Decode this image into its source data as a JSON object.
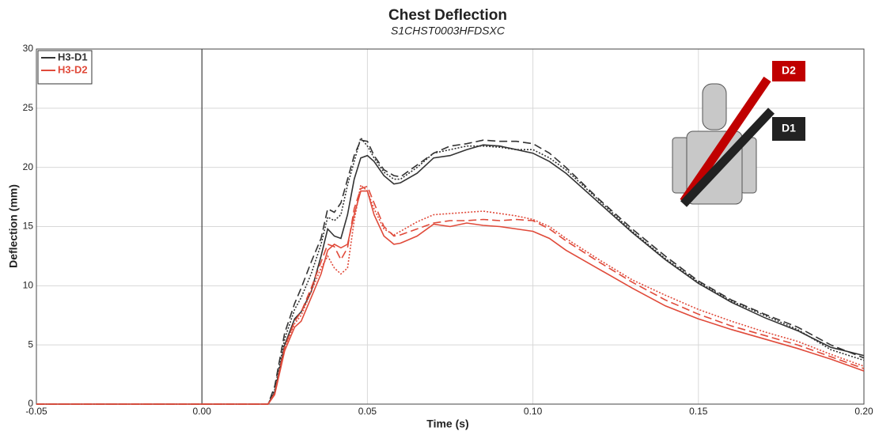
{
  "chart_data": {
    "type": "line",
    "title": "Chest Deflection",
    "subtitle": "S1CHST0003HFDSXC",
    "x_label": "Time (s)",
    "y_label": "Deflection (mm)",
    "xlim": [
      -0.05,
      0.2
    ],
    "ylim": [
      0,
      30
    ],
    "xticks": [
      {
        "value": -0.05,
        "label": "-0.05"
      },
      {
        "value": 0,
        "label": "0.00"
      },
      {
        "value": 0.05,
        "label": "0.05"
      },
      {
        "value": 0.1,
        "label": "0.10"
      },
      {
        "value": 0.15,
        "label": "0.15"
      },
      {
        "value": 0.2,
        "label": "0.20"
      }
    ],
    "yticks": [
      0,
      5,
      10,
      15,
      20,
      25,
      30
    ],
    "grid": true,
    "legend": "top-left",
    "annotations": [
      "D2",
      "D1"
    ],
    "x": [
      -0.05,
      0.02,
      0.022,
      0.025,
      0.028,
      0.03,
      0.033,
      0.036,
      0.038,
      0.04,
      0.042,
      0.044,
      0.046,
      0.048,
      0.05,
      0.052,
      0.055,
      0.058,
      0.06,
      0.065,
      0.07,
      0.075,
      0.08,
      0.085,
      0.09,
      0.095,
      0.1,
      0.105,
      0.11,
      0.12,
      0.13,
      0.14,
      0.15,
      0.16,
      0.17,
      0.18,
      0.19,
      0.2
    ],
    "series": [
      {
        "name": "H3-D1",
        "color": "#333333",
        "dash": "solid",
        "values": [
          0,
          0,
          1,
          5,
          7.2,
          7.8,
          9.5,
          12.5,
          14.8,
          14.2,
          14,
          16,
          19,
          20.8,
          21,
          20.5,
          19.3,
          18.6,
          18.7,
          19.5,
          20.8,
          21,
          21.5,
          21.9,
          21.8,
          21.5,
          21.2,
          20.5,
          19.5,
          17,
          14.5,
          12.2,
          10.2,
          8.6,
          7.3,
          6.2,
          4.8,
          4.1
        ]
      },
      {
        "color": "#333333",
        "dash": "dashed",
        "values": [
          0,
          0,
          1.5,
          6,
          8.5,
          9.8,
          12,
          14,
          16.5,
          16.2,
          17,
          19,
          21,
          22.3,
          22.2,
          21,
          19.8,
          19.3,
          19.2,
          20.2,
          21.2,
          21.8,
          22,
          22.3,
          22.2,
          22.2,
          22,
          21.2,
          20,
          17.3,
          14.8,
          12.5,
          10.4,
          8.8,
          7.6,
          6.5,
          5,
          3.9
        ]
      },
      {
        "color": "#333333",
        "dash": "dotted",
        "values": [
          0,
          0,
          1.2,
          5.5,
          8,
          9,
          11,
          13.5,
          15.8,
          15.5,
          16,
          18.5,
          20.5,
          22.5,
          21.8,
          20.8,
          19.6,
          19,
          19,
          20,
          21.2,
          21.5,
          21.8,
          21.8,
          21.7,
          21.5,
          21.5,
          20.8,
          19.8,
          17.2,
          14.6,
          12.3,
          10.3,
          8.7,
          7.5,
          6.3,
          4.6,
          3.7
        ]
      },
      {
        "name": "H3-D2",
        "color": "#e04a3a",
        "dash": "solid",
        "values": [
          0,
          0,
          0.8,
          4.5,
          6.5,
          7,
          9,
          11,
          13,
          13.5,
          13.2,
          13.5,
          16,
          18,
          18,
          16,
          14.2,
          13.5,
          13.6,
          14.2,
          15.2,
          15,
          15.3,
          15.1,
          15,
          14.8,
          14.6,
          14,
          13,
          11.4,
          9.8,
          8.3,
          7.2,
          6.3,
          5.5,
          4.7,
          3.8,
          2.8
        ]
      },
      {
        "color": "#e04a3a",
        "dash": "dashed",
        "values": [
          0,
          0,
          0.9,
          4.8,
          7,
          7.8,
          9.8,
          12,
          13.5,
          13.3,
          12.2,
          13.2,
          16.5,
          18.2,
          18.4,
          17,
          15,
          14.2,
          14.3,
          14.8,
          15.3,
          15.5,
          15.5,
          15.6,
          15.5,
          15.6,
          15.5,
          14.8,
          13.8,
          12,
          10.3,
          8.8,
          7.6,
          6.6,
          5.8,
          5,
          4,
          3
        ]
      },
      {
        "color": "#e04a3a",
        "dash": "dotted",
        "values": [
          0,
          0,
          0.9,
          4.8,
          6.8,
          7.5,
          9.5,
          11.5,
          12.5,
          11.5,
          11,
          11.5,
          15.5,
          18.5,
          18,
          16.5,
          14.8,
          14.3,
          14.6,
          15.4,
          16,
          16.1,
          16.2,
          16.3,
          16.1,
          15.9,
          15.6,
          15,
          14,
          12.2,
          10.5,
          9.2,
          8,
          7,
          6.1,
          5.3,
          4.2,
          3.2
        ]
      }
    ]
  }
}
